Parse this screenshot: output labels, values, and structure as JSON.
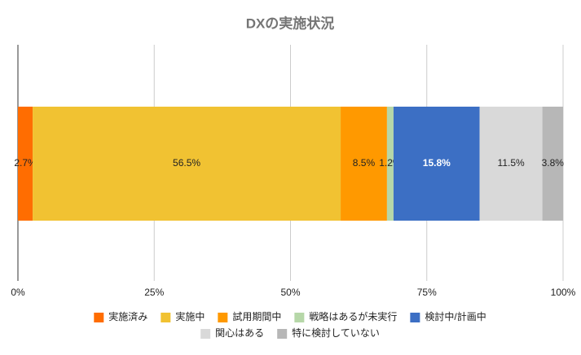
{
  "chart_data": {
    "type": "stacked_bar",
    "orientation": "horizontal",
    "title": "DXの実施状況",
    "categories": [
      null
    ],
    "series": [
      {
        "name": "実施済み",
        "color": "#ff6d01",
        "values": [
          2.7
        ],
        "value_labels": [
          "2.7%"
        ]
      },
      {
        "name": "実施中",
        "color": "#f1c232",
        "values": [
          56.5
        ],
        "value_labels": [
          "56.5%"
        ]
      },
      {
        "name": "試用期間中",
        "color": "#ff9900",
        "values": [
          8.5
        ],
        "value_labels": [
          "8.5%"
        ]
      },
      {
        "name": "戦略はあるが未実行",
        "color": "#b6d7a8",
        "values": [
          1.2
        ],
        "value_labels": [
          "1.2%"
        ]
      },
      {
        "name": "検討中/計画中",
        "color": "#3c6fc4",
        "values": [
          15.8
        ],
        "value_labels": [
          "15.8%"
        ]
      },
      {
        "name": "関心はある",
        "color": "#d9d9d9",
        "values": [
          11.5
        ],
        "value_labels": [
          "11.5%"
        ]
      },
      {
        "name": "特に検討していない",
        "color": "#b7b7b7",
        "values": [
          3.8
        ],
        "value_labels": [
          "3.8%"
        ]
      }
    ],
    "xlim": [
      0,
      100
    ],
    "xticks": [
      {
        "value": 0,
        "label": "0%"
      },
      {
        "value": 25,
        "label": "25%"
      },
      {
        "value": 50,
        "label": "50%"
      },
      {
        "value": 75,
        "label": "75%"
      },
      {
        "value": 100,
        "label": "100%"
      }
    ],
    "grid": true,
    "legend": "bottom"
  }
}
